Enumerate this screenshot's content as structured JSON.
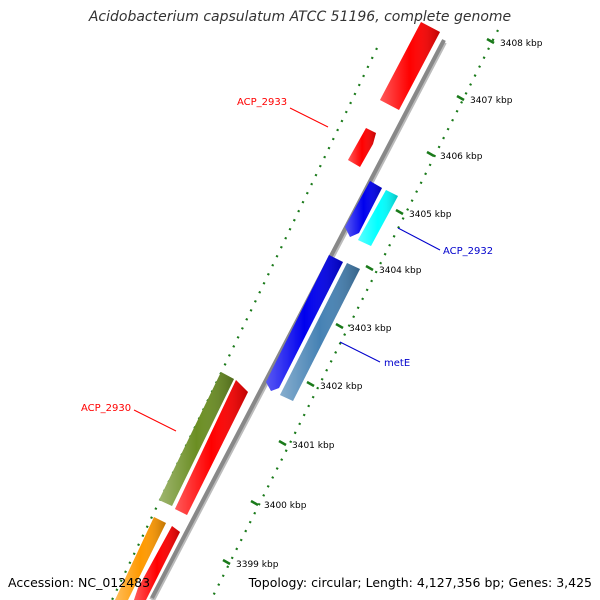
{
  "title": "Acidobacterium capsulatum ATCC 51196, complete genome",
  "footer": {
    "accession": "Accession: NC_012483",
    "stats": "Topology: circular; Length: 4,127,356 bp; Genes: 3,425"
  },
  "ticks": [
    "3408 kbp",
    "3407 kbp",
    "3406 kbp",
    "3405 kbp",
    "3404 kbp",
    "3403 kbp",
    "3402 kbp",
    "3401 kbp",
    "3400 kbp",
    "3399 kbp"
  ],
  "gene_labels": [
    {
      "name": "ACP_2933",
      "color": "#ff0000"
    },
    {
      "name": "ACP_2932",
      "color": "#0000cc"
    },
    {
      "name": "metE",
      "color": "#0000cc"
    },
    {
      "name": "ACP_2930",
      "color": "#ff0000"
    }
  ],
  "colors": {
    "backbone": "#888888",
    "tick": "#1a7a1a",
    "red": "#ff0000",
    "blue": "#0000ee",
    "cyan": "#00ffff",
    "steel": "#4682b4",
    "olive": "#6b8e23",
    "orange": "#ff9900"
  }
}
